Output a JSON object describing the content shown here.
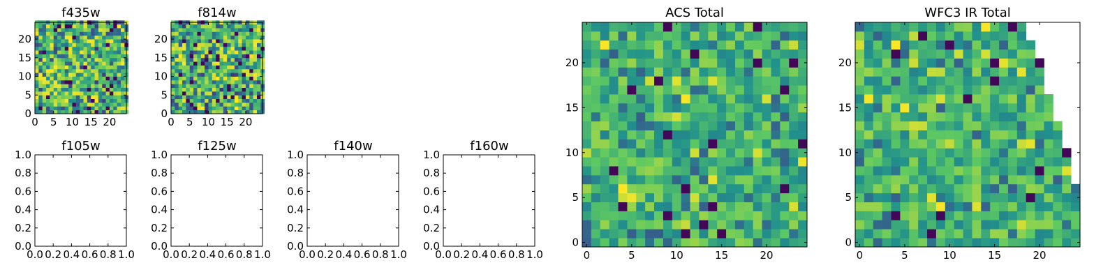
{
  "colormap": [
    "#440154",
    "#3b528b",
    "#21918c",
    "#5ec962",
    "#fde725"
  ],
  "chart_data": [
    {
      "id": "f435w",
      "type": "heatmap",
      "title": "f435w",
      "xlim": [
        0,
        24
      ],
      "ylim": [
        0,
        24
      ],
      "xticks": [
        "0",
        "5",
        "10",
        "15",
        "20"
      ],
      "yticks": [
        "0",
        "5",
        "10",
        "15",
        "20"
      ],
      "grid": false,
      "nx": 25,
      "ny": 25,
      "seed": 11,
      "profile": "noisy"
    },
    {
      "id": "f814w",
      "type": "heatmap",
      "title": "f814w",
      "xlim": [
        0,
        24
      ],
      "ylim": [
        0,
        24
      ],
      "xticks": [
        "0",
        "5",
        "10",
        "15",
        "20"
      ],
      "yticks": [
        "0",
        "5",
        "10",
        "15",
        "20"
      ],
      "grid": false,
      "nx": 25,
      "ny": 25,
      "seed": 23,
      "profile": "noisy"
    },
    {
      "id": "f105w",
      "type": "empty",
      "title": "f105w",
      "xlim": [
        0,
        1
      ],
      "ylim": [
        0,
        1
      ],
      "xticks": [
        "0.0",
        "0.2",
        "0.4",
        "0.6",
        "0.8",
        "1.0"
      ],
      "yticks": [
        "0.0",
        "0.2",
        "0.4",
        "0.6",
        "0.8",
        "1.0"
      ]
    },
    {
      "id": "f125w",
      "type": "empty",
      "title": "f125w",
      "xlim": [
        0,
        1
      ],
      "ylim": [
        0,
        1
      ],
      "xticks": [
        "0.0",
        "0.2",
        "0.4",
        "0.6",
        "0.8",
        "1.0"
      ],
      "yticks": [
        "0.0",
        "0.2",
        "0.4",
        "0.6",
        "0.8",
        "1.0"
      ]
    },
    {
      "id": "f140w",
      "type": "empty",
      "title": "f140w",
      "xlim": [
        0,
        1
      ],
      "ylim": [
        0,
        1
      ],
      "xticks": [
        "0.0",
        "0.2",
        "0.4",
        "0.6",
        "0.8",
        "1.0"
      ],
      "yticks": [
        "0.0",
        "0.2",
        "0.4",
        "0.6",
        "0.8",
        "1.0"
      ]
    },
    {
      "id": "f160w",
      "type": "empty",
      "title": "f160w",
      "xlim": [
        0,
        1
      ],
      "ylim": [
        0,
        1
      ],
      "xticks": [
        "0.0",
        "0.2",
        "0.4",
        "0.6",
        "0.8",
        "1.0"
      ],
      "yticks": [
        "0.0",
        "0.2",
        "0.4",
        "0.6",
        "0.8",
        "1.0"
      ]
    },
    {
      "id": "acs-total",
      "type": "heatmap",
      "title": "ACS Total",
      "xlim": [
        -0.5,
        24.5
      ],
      "ylim": [
        -0.5,
        24.5
      ],
      "xticks": [
        "0",
        "5",
        "10",
        "15",
        "20"
      ],
      "yticks": [
        "0",
        "5",
        "10",
        "15",
        "20"
      ],
      "grid": false,
      "nx": 25,
      "ny": 25,
      "seed": 37,
      "profile": "smooth"
    },
    {
      "id": "wfc3-ir-total",
      "type": "heatmap",
      "title": "WFC3 IR Total",
      "xlim": [
        -0.5,
        24.5
      ],
      "ylim": [
        -0.5,
        24.5
      ],
      "xticks": [
        "0",
        "5",
        "10",
        "15",
        "20"
      ],
      "yticks": [
        "0",
        "5",
        "10",
        "15",
        "20"
      ],
      "grid": false,
      "nx": 25,
      "ny": 25,
      "seed": 53,
      "profile": "smooth",
      "missing_region": "upper-right staircase (no data)"
    }
  ]
}
